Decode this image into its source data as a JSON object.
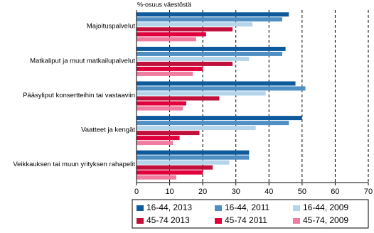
{
  "chart_data": {
    "type": "hbar",
    "axis_title": "%-osuus väestöstä",
    "categories": [
      "Majoituspalvelut",
      "Matkaliput ja muut matkailupalvelut",
      "Pääsyliput konsertteihin tai vastaaviin",
      "Vaatteet ja kengät",
      "Veikkauksen tai muun yrityksen rahapelit"
    ],
    "series": [
      {
        "name": "16-44, 2013",
        "color": "#0d5a9c",
        "values": [
          46,
          45,
          48,
          50,
          34
        ]
      },
      {
        "name": "16-44, 2011",
        "color": "#4f8fc4",
        "values": [
          44,
          44,
          51,
          46,
          34
        ]
      },
      {
        "name": "16-44, 2009",
        "color": "#b4d4ea",
        "values": [
          35,
          34,
          39,
          36,
          28
        ]
      },
      {
        "name": "45-74 2013",
        "color": "#c1103c",
        "values": [
          29,
          29,
          25,
          19,
          23
        ]
      },
      {
        "name": "45-74 2011",
        "color": "#e0003c",
        "values": [
          21,
          20,
          15,
          13,
          20
        ]
      },
      {
        "name": "45-74, 2009",
        "color": "#f07ca0",
        "values": [
          18,
          17,
          14,
          11,
          12
        ]
      }
    ],
    "xlim": [
      0,
      70
    ],
    "xticks": [
      0,
      10,
      20,
      30,
      40,
      50,
      60,
      70
    ],
    "grid": true
  }
}
